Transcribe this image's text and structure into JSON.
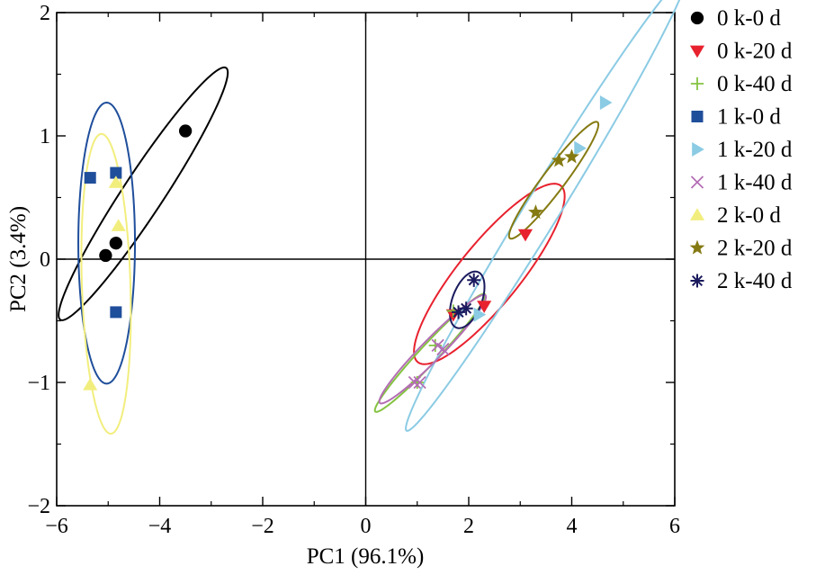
{
  "chart_data": {
    "type": "scatter",
    "xlabel": "PC1 (96.1%)",
    "ylabel": "PC2 (3.4%)",
    "xlim": [
      -6,
      6
    ],
    "ylim": [
      -2,
      2
    ],
    "xticks": [
      -6,
      -4,
      -2,
      0,
      2,
      4,
      6
    ],
    "yticks": [
      -2,
      -1,
      0,
      1,
      2
    ],
    "reference_lines": {
      "x": 0,
      "y": 0
    },
    "grid": false,
    "legend_position": "right",
    "series": [
      {
        "name": "0 k-0 d",
        "marker": "circle",
        "color": "#000000",
        "points": [
          [
            -3.5,
            1.04
          ],
          [
            -5.05,
            0.03
          ],
          [
            -4.85,
            0.13
          ]
        ],
        "ellipse": {
          "cx": -4.32,
          "cy": 0.53,
          "rx": 1.92,
          "ry": 0.25,
          "angle_deg": 31.5
        }
      },
      {
        "name": "0 k-20 d",
        "marker": "triangle-down",
        "color": "#e8212e",
        "points": [
          [
            3.1,
            0.2
          ],
          [
            2.3,
            -0.38
          ],
          [
            1.7,
            -0.45
          ]
        ],
        "ellipse": {
          "cx": 2.4,
          "cy": -0.12,
          "rx": 1.6,
          "ry": 0.34,
          "angle_deg": 24.5
        }
      },
      {
        "name": "0 k-40 d",
        "marker": "plus",
        "color": "#84c341",
        "points": [
          [
            1.7,
            -0.42
          ],
          [
            1.35,
            -0.7
          ],
          [
            1.0,
            -1.0
          ]
        ],
        "ellipse": {
          "cx": 1.25,
          "cy": -0.76,
          "rx": 1.17,
          "ry": 0.1,
          "angle_deg": 23.7
        }
      },
      {
        "name": "1 k-0 d",
        "marker": "square",
        "color": "#1f4e9b",
        "points": [
          [
            -5.35,
            0.66
          ],
          [
            -4.85,
            0.7
          ],
          [
            -4.85,
            -0.43
          ]
        ],
        "ellipse": {
          "cx": -5.03,
          "cy": 0.13,
          "rx": 0.55,
          "ry": 1.14,
          "angle_deg": 0
        }
      },
      {
        "name": "1 k-20 d",
        "marker": "triangle-right",
        "color": "#8bcbe4",
        "points": [
          [
            4.65,
            1.27
          ],
          [
            4.15,
            0.9
          ],
          [
            2.2,
            -0.45
          ]
        ],
        "ellipse": {
          "cx": 3.5,
          "cy": 0.45,
          "rx": 3.28,
          "ry": 0.22,
          "angle_deg": 34.0
        }
      },
      {
        "name": "1 k-40 d",
        "marker": "cross",
        "color": "#b46eb4",
        "points": [
          [
            1.5,
            -0.73
          ],
          [
            1.4,
            -0.7
          ],
          [
            1.05,
            -1.0
          ],
          [
            0.95,
            -1.0
          ]
        ],
        "ellipse": {
          "cx": 1.3,
          "cy": -0.73,
          "rx": 1.12,
          "ry": 0.11,
          "angle_deg": 22.5
        }
      },
      {
        "name": "2 k-0 d",
        "marker": "triangle-up",
        "color": "#f2ee7e",
        "points": [
          [
            -4.85,
            0.62
          ],
          [
            -4.8,
            0.27
          ],
          [
            -5.35,
            -1.02
          ]
        ],
        "ellipse": {
          "cx": -5.04,
          "cy": -0.2,
          "rx": 0.47,
          "ry": 1.22,
          "angle_deg": 5
        }
      },
      {
        "name": "2 k-20 d",
        "marker": "star",
        "color": "#857a12",
        "points": [
          [
            4.0,
            0.83
          ],
          [
            3.75,
            0.8
          ],
          [
            3.3,
            0.38
          ]
        ],
        "ellipse": {
          "cx": 3.65,
          "cy": 0.64,
          "rx": 0.98,
          "ry": 0.13,
          "angle_deg": 28
        }
      },
      {
        "name": "2 k-40 d",
        "marker": "asterisk",
        "color": "#1a1a5e",
        "points": [
          [
            2.1,
            -0.17
          ],
          [
            1.95,
            -0.4
          ],
          [
            1.8,
            -0.43
          ]
        ],
        "ellipse": {
          "cx": 1.97,
          "cy": -0.33,
          "rx": 0.36,
          "ry": 0.19,
          "angle_deg": 25
        }
      }
    ]
  }
}
